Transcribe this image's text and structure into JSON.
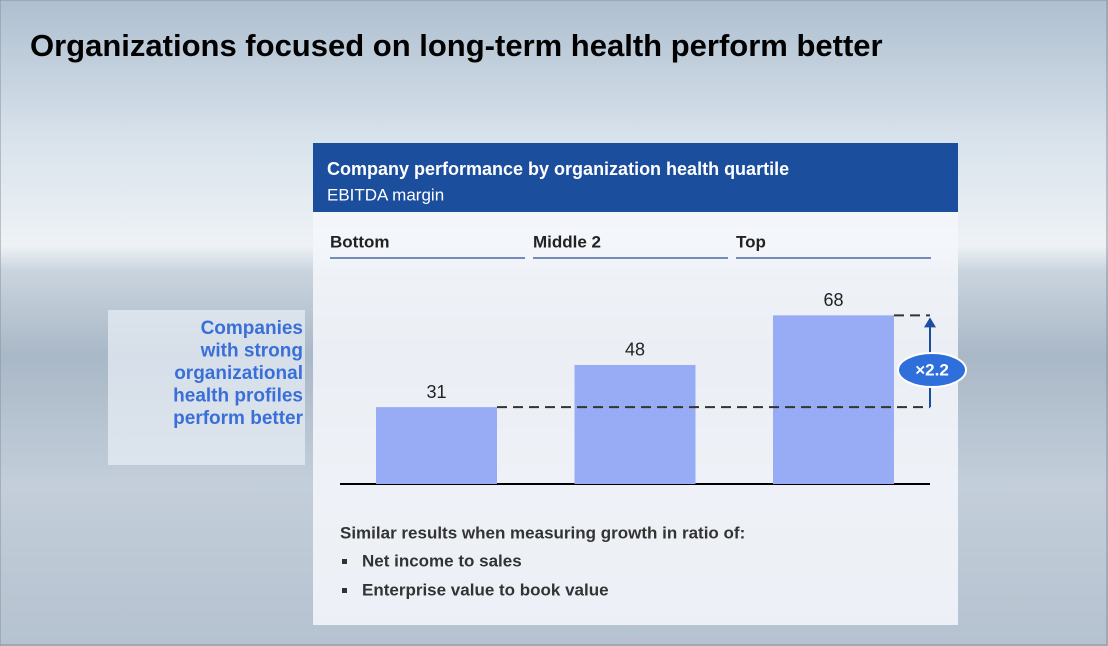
{
  "slide_title": "Organizations focused on long-term health perform better",
  "side_text": [
    "Companies",
    "with strong",
    "organizational",
    "health profiles",
    "perform better"
  ],
  "chart_data": {
    "type": "bar",
    "title": "Company performance by organization health quartile",
    "subtitle": "EBITDA margin",
    "categories": [
      "Bottom",
      "Middle 2",
      "Top"
    ],
    "values": [
      31,
      48,
      68
    ],
    "color": "#98acf6",
    "annotation": "×2.2"
  },
  "notes": {
    "intro": "Similar results when measuring growth in ratio of:",
    "bullets": [
      "Net income to sales",
      "Enterprise value to book value"
    ]
  }
}
